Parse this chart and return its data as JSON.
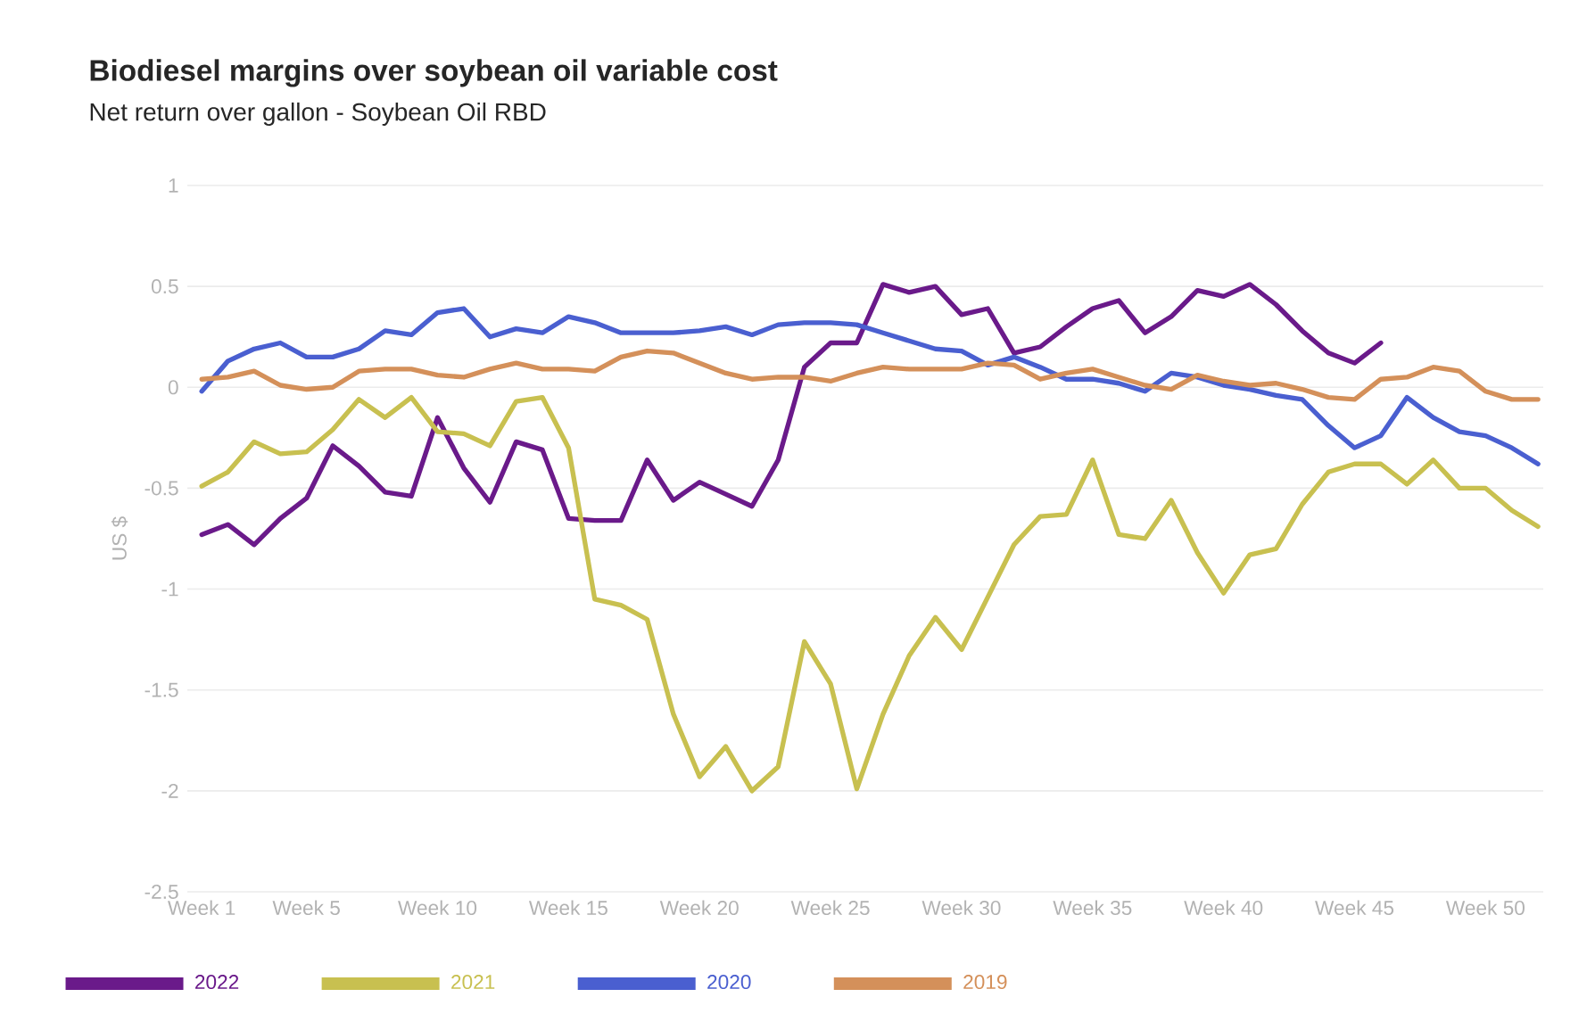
{
  "chart_data": {
    "type": "line",
    "title": "Biodiesel margins over soybean oil variable cost",
    "subtitle": "Net return over gallon - Soybean Oil RBD",
    "ylabel": "US $",
    "categories": [
      "Week 1",
      null,
      null,
      null,
      "Week 5",
      null,
      null,
      null,
      null,
      "Week 10",
      null,
      null,
      null,
      null,
      "Week 15",
      null,
      null,
      null,
      null,
      "Week 20",
      null,
      null,
      null,
      null,
      "Week 25",
      null,
      null,
      null,
      null,
      "Week 30",
      null,
      null,
      null,
      null,
      "Week 35",
      null,
      null,
      null,
      null,
      "Week 40",
      null,
      null,
      null,
      null,
      "Week 45",
      null,
      null,
      null,
      null,
      "Week 50",
      null,
      null
    ],
    "ylim": [
      -2.5,
      1
    ],
    "yticks": [
      -2.5,
      -2,
      -1.5,
      -1,
      -0.5,
      0,
      0.5,
      1
    ],
    "grid": "y",
    "legend": "bottom",
    "series": [
      {
        "name": "2022",
        "color": "#6a1a8a",
        "values": [
          -0.73,
          -0.68,
          -0.78,
          -0.65,
          -0.55,
          -0.29,
          -0.39,
          -0.52,
          -0.54,
          -0.15,
          -0.4,
          -0.57,
          -0.27,
          -0.31,
          -0.65,
          -0.66,
          -0.66,
          -0.36,
          -0.56,
          -0.47,
          -0.53,
          -0.59,
          -0.36,
          0.1,
          0.22,
          0.22,
          0.51,
          0.47,
          0.5,
          0.36,
          0.39,
          0.17,
          0.2,
          0.3,
          0.39,
          0.43,
          0.27,
          0.35,
          0.48,
          0.45,
          0.51,
          0.41,
          0.28,
          0.17,
          0.12,
          0.22,
          null,
          null,
          null,
          null,
          null,
          null
        ]
      },
      {
        "name": "2021",
        "color": "#c8c050",
        "values": [
          -0.49,
          -0.42,
          -0.27,
          -0.33,
          -0.32,
          -0.21,
          -0.06,
          -0.15,
          -0.05,
          -0.22,
          -0.23,
          -0.29,
          -0.07,
          -0.05,
          -0.3,
          -1.05,
          -1.08,
          -1.15,
          -1.62,
          -1.93,
          -1.78,
          -2.0,
          -1.88,
          -1.26,
          -1.47,
          -1.99,
          -1.62,
          -1.33,
          -1.14,
          -1.3,
          -1.04,
          -0.78,
          -0.64,
          -0.63,
          -0.36,
          -0.73,
          -0.75,
          -0.56,
          -0.82,
          -1.02,
          -0.83,
          -0.8,
          -0.58,
          -0.42,
          -0.38,
          -0.38,
          -0.48,
          -0.36,
          -0.5,
          -0.5,
          -0.61,
          -0.69
        ]
      },
      {
        "name": "2020",
        "color": "#4a5fd0",
        "values": [
          -0.02,
          0.13,
          0.19,
          0.22,
          0.15,
          0.15,
          0.19,
          0.28,
          0.26,
          0.37,
          0.39,
          0.25,
          0.29,
          0.27,
          0.35,
          0.32,
          0.27,
          0.27,
          0.27,
          0.28,
          0.3,
          0.26,
          0.31,
          0.32,
          0.32,
          0.31,
          0.27,
          0.23,
          0.19,
          0.18,
          0.11,
          0.15,
          0.1,
          0.04,
          0.04,
          0.02,
          -0.02,
          0.07,
          0.05,
          0.01,
          -0.01,
          -0.04,
          -0.06,
          -0.19,
          -0.3,
          -0.24,
          -0.05,
          -0.15,
          -0.22,
          -0.24,
          -0.3,
          -0.38
        ]
      },
      {
        "name": "2019",
        "color": "#d4905a",
        "values": [
          0.04,
          0.05,
          0.08,
          0.01,
          -0.01,
          0.0,
          0.08,
          0.09,
          0.09,
          0.06,
          0.05,
          0.09,
          0.12,
          0.09,
          0.09,
          0.08,
          0.15,
          0.18,
          0.17,
          0.12,
          0.07,
          0.04,
          0.05,
          0.05,
          0.03,
          0.07,
          0.1,
          0.09,
          0.09,
          0.09,
          0.12,
          0.11,
          0.04,
          0.07,
          0.09,
          0.05,
          0.01,
          -0.01,
          0.06,
          0.03,
          0.01,
          0.02,
          -0.01,
          -0.05,
          -0.06,
          0.04,
          0.05,
          0.1,
          0.08,
          -0.02,
          -0.06,
          -0.06
        ]
      }
    ]
  }
}
